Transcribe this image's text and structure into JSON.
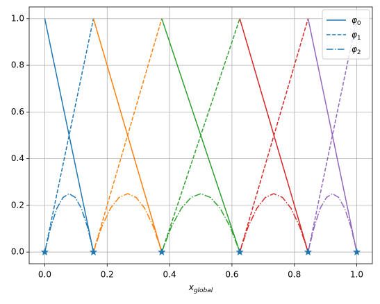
{
  "chart_data": {
    "type": "line",
    "xlabel": {
      "base": "x",
      "sub": "global"
    },
    "xlim": [
      -0.05,
      1.05
    ],
    "ylim": [
      -0.05,
      1.05
    ],
    "xticks": [
      {
        "value": 0,
        "label": "0.0"
      },
      {
        "value": 0.2,
        "label": "0.2"
      },
      {
        "value": 0.4,
        "label": "0.4"
      },
      {
        "value": 0.6,
        "label": "0.6"
      },
      {
        "value": 0.8,
        "label": "0.8"
      },
      {
        "value": 1,
        "label": "1.0"
      }
    ],
    "yticks": [
      {
        "value": 0,
        "label": "0.0"
      },
      {
        "value": 0.2,
        "label": "0.2"
      },
      {
        "value": 0.4,
        "label": "0.4"
      },
      {
        "value": 0.6,
        "label": "0.6"
      },
      {
        "value": 0.8,
        "label": "0.8"
      },
      {
        "value": 1,
        "label": "1.0"
      }
    ],
    "grid": true,
    "series": [
      {
        "color": "#1f77b4",
        "style": "solid",
        "x": [
          0,
          0.156
        ],
        "values": [
          1,
          0
        ]
      },
      {
        "color": "#1f77b4",
        "style": "dashed",
        "x": [
          0,
          0.156
        ],
        "values": [
          0,
          1
        ]
      },
      {
        "color": "#1f77b4",
        "style": "dashdot",
        "x": [
          0,
          0.0195,
          0.039,
          0.0585,
          0.078,
          0.0975,
          0.117,
          0.1365,
          0.156
        ],
        "values": [
          0,
          0.109,
          0.188,
          0.234,
          0.25,
          0.234,
          0.188,
          0.109,
          0
        ]
      },
      {
        "color": "#ff7f0e",
        "style": "solid",
        "x": [
          0.156,
          0.375
        ],
        "values": [
          1,
          0
        ]
      },
      {
        "color": "#ff7f0e",
        "style": "dashed",
        "x": [
          0.156,
          0.375
        ],
        "values": [
          0,
          1
        ]
      },
      {
        "color": "#ff7f0e",
        "style": "dashdot",
        "x": [
          0.156,
          0.183,
          0.211,
          0.238,
          0.266,
          0.293,
          0.32,
          0.348,
          0.375
        ],
        "values": [
          0,
          0.109,
          0.188,
          0.234,
          0.25,
          0.234,
          0.188,
          0.109,
          0
        ]
      },
      {
        "color": "#2ca02c",
        "style": "solid",
        "x": [
          0.375,
          0.625
        ],
        "values": [
          1,
          0
        ]
      },
      {
        "color": "#2ca02c",
        "style": "dashed",
        "x": [
          0.375,
          0.625
        ],
        "values": [
          0,
          1
        ]
      },
      {
        "color": "#2ca02c",
        "style": "dashdot",
        "x": [
          0.375,
          0.406,
          0.438,
          0.469,
          0.5,
          0.531,
          0.562,
          0.594,
          0.625
        ],
        "values": [
          0,
          0.109,
          0.188,
          0.234,
          0.25,
          0.234,
          0.188,
          0.109,
          0
        ]
      },
      {
        "color": "#d62728",
        "style": "solid",
        "x": [
          0.625,
          0.844
        ],
        "values": [
          1,
          0
        ]
      },
      {
        "color": "#d62728",
        "style": "dashed",
        "x": [
          0.625,
          0.844
        ],
        "values": [
          0,
          1
        ]
      },
      {
        "color": "#d62728",
        "style": "dashdot",
        "x": [
          0.625,
          0.652,
          0.68,
          0.707,
          0.734,
          0.762,
          0.789,
          0.817,
          0.844
        ],
        "values": [
          0,
          0.109,
          0.188,
          0.234,
          0.25,
          0.234,
          0.188,
          0.109,
          0
        ]
      },
      {
        "color": "#9467bd",
        "style": "solid",
        "x": [
          0.844,
          1
        ],
        "values": [
          1,
          0
        ]
      },
      {
        "color": "#9467bd",
        "style": "dashed",
        "x": [
          0.844,
          1
        ],
        "values": [
          0,
          1
        ]
      },
      {
        "color": "#9467bd",
        "style": "dashdot",
        "x": [
          0.844,
          0.864,
          0.883,
          0.903,
          0.922,
          0.942,
          0.961,
          0.981,
          1
        ],
        "values": [
          0,
          0.109,
          0.188,
          0.234,
          0.25,
          0.234,
          0.188,
          0.109,
          0
        ]
      }
    ],
    "nodes": {
      "color": "#1f77b4",
      "x": [
        0,
        0.156,
        0.375,
        0.625,
        0.844,
        1
      ],
      "values": [
        0,
        0,
        0,
        0,
        0,
        0
      ]
    },
    "legend": {
      "loc": "upper right",
      "entries": [
        {
          "base": "φ",
          "sub": "0",
          "style": "solid",
          "color": "#1f77b4"
        },
        {
          "base": "φ",
          "sub": "1",
          "style": "dashed",
          "color": "#1f77b4"
        },
        {
          "base": "φ",
          "sub": "2",
          "style": "dashdot",
          "color": "#1f77b4"
        }
      ]
    }
  }
}
